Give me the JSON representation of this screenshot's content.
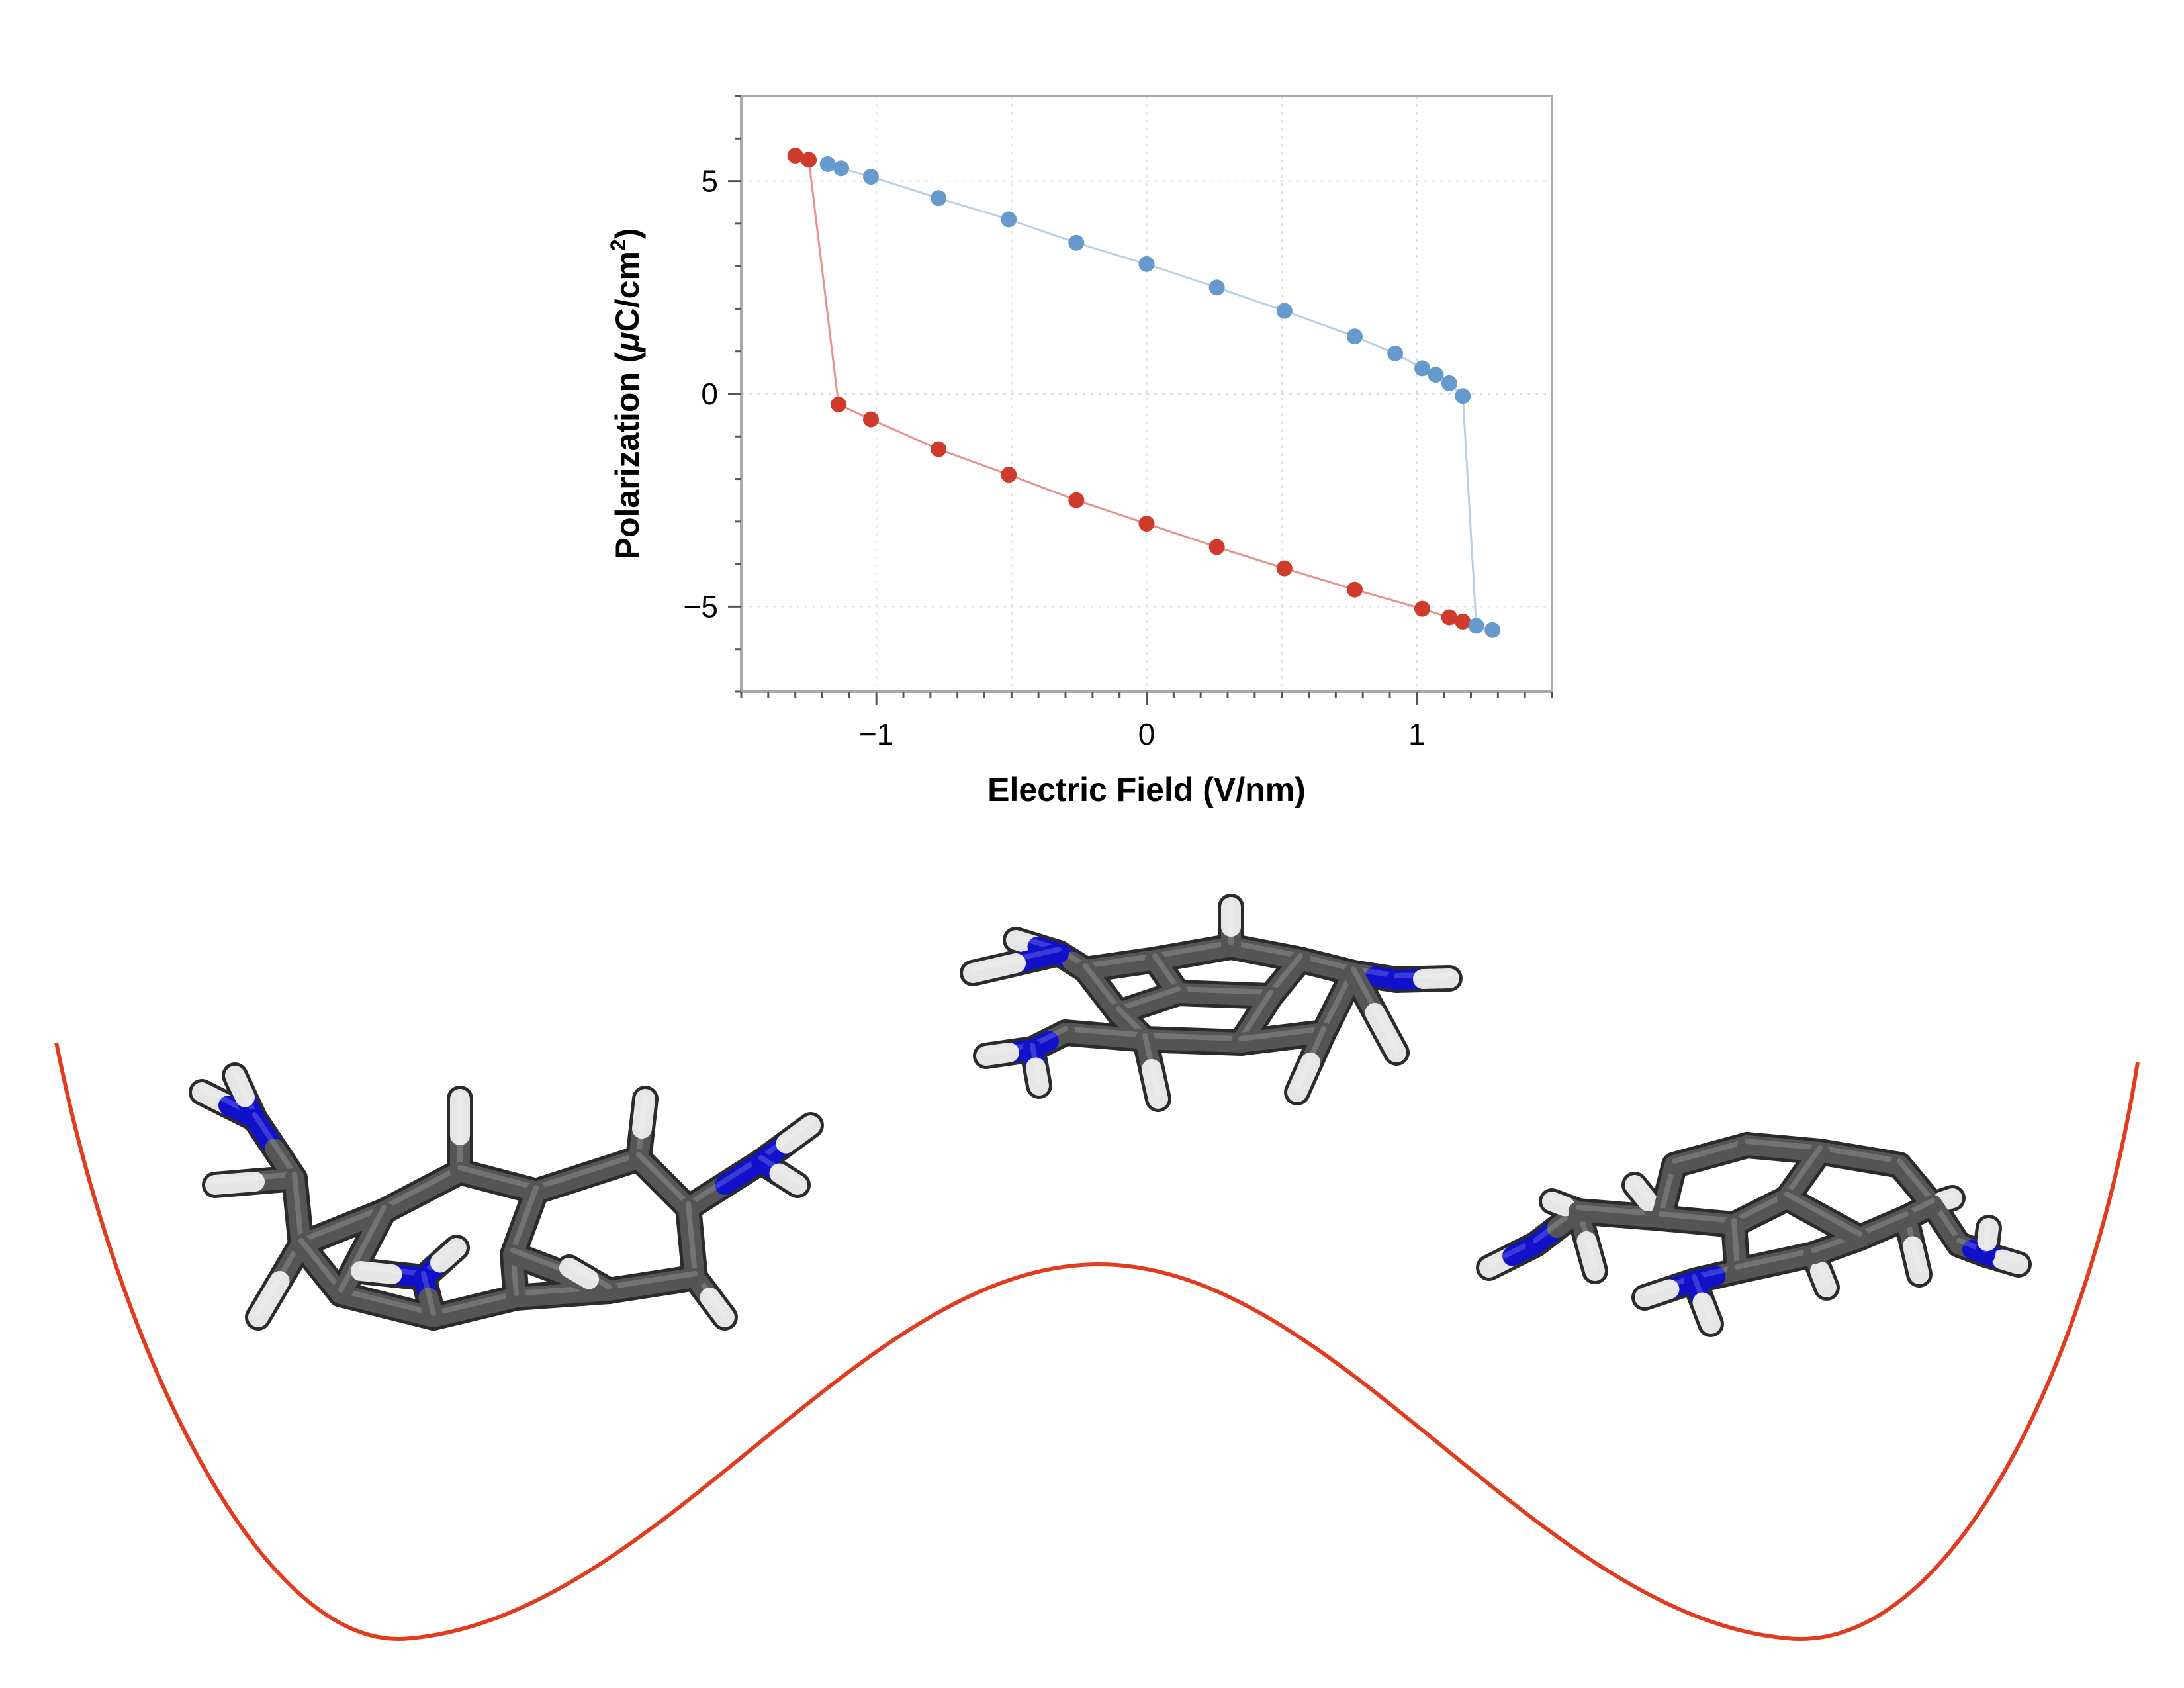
{
  "chart_data": {
    "type": "scatter",
    "title": "",
    "xlabel": "Electric Field (V/nm)",
    "ylabel_parts": {
      "main": "Polarization (",
      "mu": "μ",
      "unit": "C/cm",
      "sup": "2",
      "close": ")"
    },
    "xlim": [
      -1.5,
      1.5
    ],
    "ylim": [
      -7,
      7
    ],
    "xticks": [
      -1,
      0,
      1
    ],
    "xtick_labels": [
      "−1",
      "0",
      "1"
    ],
    "yticks": [
      -5,
      0,
      5
    ],
    "ytick_labels": [
      "−5",
      "0",
      "5"
    ],
    "grid": true,
    "legend": "none",
    "series": [
      {
        "color": "#d03a2a",
        "line_color": "#e7918a",
        "x": [
          -1.3,
          -1.25,
          -1.14,
          -1.02,
          -0.77,
          -0.51,
          -0.26,
          0.0,
          0.26,
          0.51,
          0.77,
          1.02,
          1.12,
          1.17
        ],
        "y": [
          5.6,
          5.5,
          -0.25,
          -0.6,
          -1.3,
          -1.9,
          -2.5,
          -3.05,
          -3.6,
          -4.1,
          -4.6,
          -5.05,
          -5.25,
          -5.35
        ]
      },
      {
        "color": "#6699cc",
        "line_color": "#b8cfe6",
        "x": [
          -1.18,
          -1.13,
          -1.02,
          -0.77,
          -0.51,
          -0.26,
          0.0,
          0.26,
          0.51,
          0.77,
          0.92,
          1.02,
          1.07,
          1.12,
          1.17,
          1.22,
          1.28
        ],
        "y": [
          5.4,
          5.3,
          5.1,
          4.6,
          4.1,
          3.55,
          3.05,
          2.5,
          1.95,
          1.35,
          0.95,
          0.6,
          0.45,
          0.25,
          -0.05,
          -5.45,
          -5.55
        ]
      }
    ]
  },
  "illustration": {
    "potential_curve_color": "#e03c1f",
    "atom_colors": {
      "carbon": "#555555",
      "nitrogen": "#1111cc",
      "hydrogen": "#e6e6e6"
    }
  }
}
